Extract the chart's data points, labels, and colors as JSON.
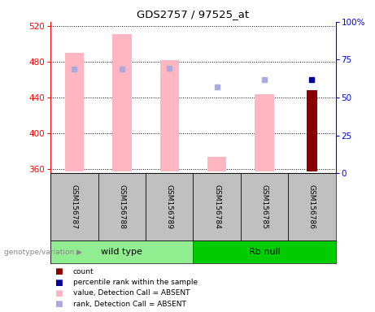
{
  "title": "GDS2757 / 97525_at",
  "samples": [
    "GSM156787",
    "GSM156788",
    "GSM156789",
    "GSM156784",
    "GSM156785",
    "GSM156786"
  ],
  "groups": [
    "wild type",
    "wild type",
    "wild type",
    "Rb null",
    "Rb null",
    "Rb null"
  ],
  "ylim_left": [
    355,
    525
  ],
  "ylim_right": [
    0,
    100
  ],
  "yticks_left": [
    360,
    400,
    440,
    480,
    520
  ],
  "yticks_right": [
    0,
    25,
    50,
    75,
    100
  ],
  "ytick_labels_right": [
    "0",
    "25",
    "50",
    "75",
    "100%"
  ],
  "pink_bar_tops": [
    490,
    511,
    482,
    373,
    444,
    0
  ],
  "pink_bar_absent": [
    true,
    true,
    true,
    true,
    true,
    false
  ],
  "light_blue_y": [
    472,
    472,
    473,
    452,
    460,
    0
  ],
  "light_blue_absent": [
    true,
    true,
    true,
    true,
    true,
    false
  ],
  "dark_blue_y": [
    null,
    null,
    null,
    null,
    null,
    460
  ],
  "dark_red_y": [
    null,
    null,
    null,
    null,
    null,
    448
  ],
  "bar_bottom": 357,
  "pink_color": "#FFB6C1",
  "light_blue_color": "#AAAADD",
  "dark_blue_color": "#000099",
  "dark_red_color": "#8B0000",
  "wild_type_color": "#90EE90",
  "rb_null_color": "#00CC00",
  "legend_items": [
    {
      "label": "count",
      "color": "#8B0000"
    },
    {
      "label": "percentile rank within the sample",
      "color": "#000099"
    },
    {
      "label": "value, Detection Call = ABSENT",
      "color": "#FFB6C1"
    },
    {
      "label": "rank, Detection Call = ABSENT",
      "color": "#AAAADD"
    }
  ]
}
